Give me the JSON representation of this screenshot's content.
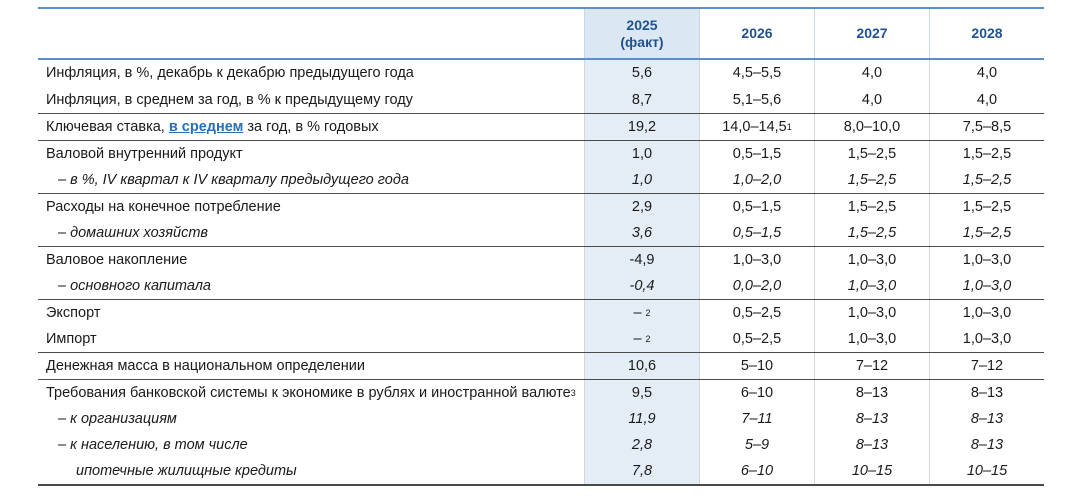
{
  "header": {
    "y2025_line1": "2025",
    "y2025_line2": "(факт)",
    "y2026": "2026",
    "y2027": "2027",
    "y2028": "2028"
  },
  "rows": [
    {
      "label": "Инфляция, в %, декабрь к декабрю предыдущего года",
      "v2025": "5,6",
      "v2026": "4,5–5,5",
      "v2027": "4,0",
      "v2028": "4,0"
    },
    {
      "label": "Инфляция, в среднем за год, в % к предыдущему году",
      "v2025": "8,7",
      "v2026": "5,1–5,6",
      "v2027": "4,0",
      "v2028": "4,0"
    },
    {
      "label_pre": "Ключевая ставка, ",
      "label_link": "в среднем",
      "label_post": " за год, в % годовых",
      "v2025": "19,2",
      "v2026": "14,0–14,5",
      "v2026_sup": "1",
      "v2027": "8,0–10,0",
      "v2028": "7,5–8,5"
    },
    {
      "label": "Валовой внутренний продукт",
      "v2025": "1,0",
      "v2026": "0,5–1,5",
      "v2027": "1,5–2,5",
      "v2028": "1,5–2,5"
    },
    {
      "label": "– в %, IV квартал к IV кварталу предыдущего года",
      "v2025": "1,0",
      "v2026": "1,0–2,0",
      "v2027": "1,5–2,5",
      "v2028": "1,5–2,5"
    },
    {
      "label": "Расходы на конечное потребление",
      "v2025": "2,9",
      "v2026": "0,5–1,5",
      "v2027": "1,5–2,5",
      "v2028": "1,5–2,5"
    },
    {
      "label": "– домашних хозяйств",
      "v2025": "3,6",
      "v2026": "0,5–1,5",
      "v2027": "1,5–2,5",
      "v2028": "1,5–2,5"
    },
    {
      "label": "Валовое накопление",
      "v2025": "-4,9",
      "v2026": "1,0–3,0",
      "v2027": "1,0–3,0",
      "v2028": "1,0–3,0"
    },
    {
      "label": "– основного капитала",
      "v2025": "-0,4",
      "v2026": "0,0–2,0",
      "v2027": "1,0–3,0",
      "v2028": "1,0–3,0"
    },
    {
      "label": "Экспорт",
      "v2025": "–",
      "v2025_sup": "2",
      "v2026": "0,5–2,5",
      "v2027": "1,0–3,0",
      "v2028": "1,0–3,0"
    },
    {
      "label": "Импорт",
      "v2025": "–",
      "v2025_sup": "2",
      "v2026": "0,5–2,5",
      "v2027": "1,0–3,0",
      "v2028": "1,0–3,0"
    },
    {
      "label": "Денежная масса в национальном определении",
      "v2025": "10,6",
      "v2026": "5–10",
      "v2027": "7–12",
      "v2028": "7–12"
    },
    {
      "label": "Требования банковской системы к экономике в рублях и иностранной валюте",
      "label_sup": "3",
      "v2025": "9,5",
      "v2026": "6–10",
      "v2027": "8–13",
      "v2028": "8–13"
    },
    {
      "label": "– к организациям",
      "v2025": "11,9",
      "v2026": "7–11",
      "v2027": "8–13",
      "v2028": "8–13"
    },
    {
      "label": "– к населению, в том числе",
      "v2025": "2,8",
      "v2026": "5–9",
      "v2027": "8–13",
      "v2028": "8–13"
    },
    {
      "label": "ипотечные жилищные кредиты",
      "v2025": "7,8",
      "v2026": "6–10",
      "v2027": "10–15",
      "v2028": "10–15"
    }
  ]
}
